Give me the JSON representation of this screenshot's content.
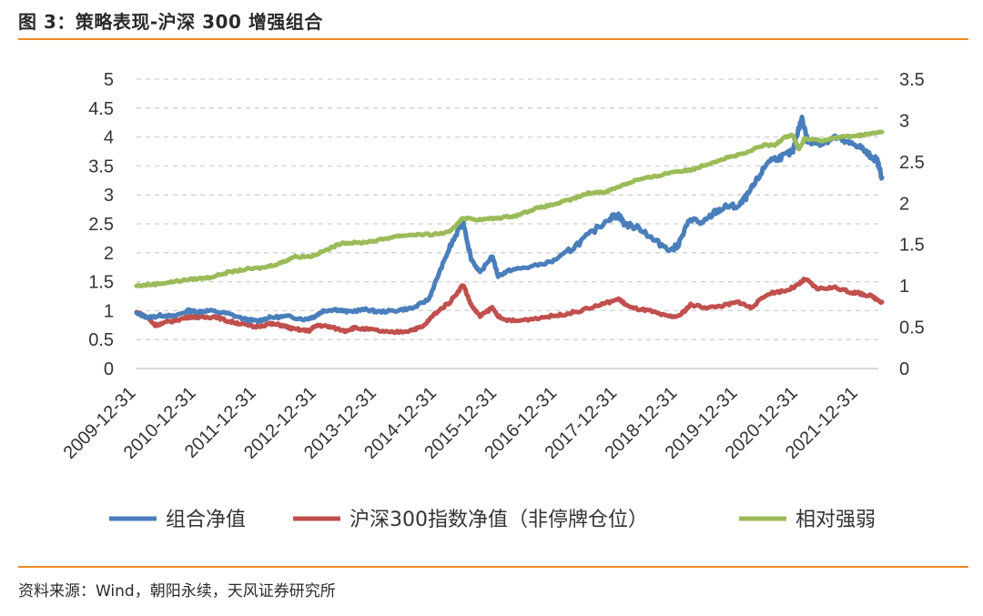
{
  "title": "图 3：策略表现-沪深 300 增强组合",
  "source": "资料来源：Wind，朝阳永续，天风证券研究所",
  "chart_data": {
    "type": "line",
    "x_categories": [
      "2009-12-31",
      "2010-12-31",
      "2011-12-31",
      "2012-12-31",
      "2013-12-31",
      "2014-12-31",
      "2015-12-31",
      "2016-12-31",
      "2017-12-31",
      "2018-12-31",
      "2019-12-31",
      "2020-12-31",
      "2021-12-31"
    ],
    "y_left": {
      "min": 0,
      "max": 5,
      "ticks": [
        "0",
        "0.5",
        "1",
        "1.5",
        "2",
        "2.5",
        "3",
        "3.5",
        "4",
        "4.5",
        "5"
      ]
    },
    "y_right": {
      "min": 0,
      "max": 3.5,
      "ticks": [
        "0",
        "0.5",
        "1",
        "1.5",
        "2",
        "2.5",
        "3",
        "3.5"
      ]
    },
    "grid": true,
    "legend_position": "bottom",
    "series": [
      {
        "name": "组合净值",
        "axis": "left",
        "color": "#4a7ebb",
        "points": [
          [
            2009.99,
            0.95
          ],
          [
            2010.2,
            0.88
          ],
          [
            2010.4,
            0.92
          ],
          [
            2010.6,
            0.9
          ],
          [
            2010.85,
            1.0
          ],
          [
            2011.0,
            0.98
          ],
          [
            2011.2,
            1.0
          ],
          [
            2011.5,
            0.95
          ],
          [
            2011.8,
            0.85
          ],
          [
            2012.0,
            0.82
          ],
          [
            2012.2,
            0.88
          ],
          [
            2012.5,
            0.9
          ],
          [
            2012.8,
            0.85
          ],
          [
            2012.95,
            0.9
          ],
          [
            2013.1,
            1.0
          ],
          [
            2013.3,
            1.02
          ],
          [
            2013.5,
            0.98
          ],
          [
            2013.8,
            1.02
          ],
          [
            2014.0,
            0.98
          ],
          [
            2014.3,
            1.0
          ],
          [
            2014.6,
            1.05
          ],
          [
            2014.85,
            1.2
          ],
          [
            2015.0,
            1.6
          ],
          [
            2015.2,
            2.1
          ],
          [
            2015.42,
            2.55
          ],
          [
            2015.55,
            1.9
          ],
          [
            2015.7,
            1.65
          ],
          [
            2015.9,
            1.95
          ],
          [
            2016.0,
            1.6
          ],
          [
            2016.2,
            1.7
          ],
          [
            2016.5,
            1.75
          ],
          [
            2016.9,
            1.85
          ],
          [
            2017.2,
            2.05
          ],
          [
            2017.5,
            2.3
          ],
          [
            2017.85,
            2.6
          ],
          [
            2018.0,
            2.65
          ],
          [
            2018.1,
            2.5
          ],
          [
            2018.4,
            2.4
          ],
          [
            2018.6,
            2.2
          ],
          [
            2018.9,
            2.05
          ],
          [
            2019.0,
            2.15
          ],
          [
            2019.2,
            2.6
          ],
          [
            2019.4,
            2.5
          ],
          [
            2019.6,
            2.7
          ],
          [
            2019.8,
            2.8
          ],
          [
            2020.0,
            2.8
          ],
          [
            2020.15,
            3.0
          ],
          [
            2020.3,
            3.25
          ],
          [
            2020.5,
            3.6
          ],
          [
            2020.7,
            3.65
          ],
          [
            2020.9,
            3.75
          ],
          [
            2021.05,
            4.35
          ],
          [
            2021.15,
            3.9
          ],
          [
            2021.4,
            3.9
          ],
          [
            2021.6,
            4.0
          ],
          [
            2021.8,
            3.9
          ],
          [
            2022.0,
            3.85
          ],
          [
            2022.15,
            3.7
          ],
          [
            2022.3,
            3.6
          ],
          [
            2022.38,
            3.3
          ]
        ]
      },
      {
        "name": "沪深300指数净值（非停牌仓位）",
        "axis": "left",
        "color": "#c0504d",
        "points": [
          [
            2009.99,
            0.97
          ],
          [
            2010.15,
            0.9
          ],
          [
            2010.3,
            0.75
          ],
          [
            2010.5,
            0.8
          ],
          [
            2010.7,
            0.85
          ],
          [
            2010.9,
            0.9
          ],
          [
            2011.1,
            0.88
          ],
          [
            2011.3,
            0.9
          ],
          [
            2011.5,
            0.82
          ],
          [
            2011.7,
            0.78
          ],
          [
            2011.95,
            0.72
          ],
          [
            2012.2,
            0.77
          ],
          [
            2012.4,
            0.75
          ],
          [
            2012.6,
            0.68
          ],
          [
            2012.85,
            0.65
          ],
          [
            2013.0,
            0.75
          ],
          [
            2013.2,
            0.72
          ],
          [
            2013.45,
            0.65
          ],
          [
            2013.6,
            0.7
          ],
          [
            2013.9,
            0.67
          ],
          [
            2014.2,
            0.62
          ],
          [
            2014.5,
            0.65
          ],
          [
            2014.75,
            0.72
          ],
          [
            2014.95,
            0.95
          ],
          [
            2015.2,
            1.15
          ],
          [
            2015.42,
            1.45
          ],
          [
            2015.55,
            1.1
          ],
          [
            2015.7,
            0.9
          ],
          [
            2015.9,
            1.05
          ],
          [
            2016.05,
            0.85
          ],
          [
            2016.3,
            0.82
          ],
          [
            2016.7,
            0.88
          ],
          [
            2017.0,
            0.92
          ],
          [
            2017.3,
            0.98
          ],
          [
            2017.7,
            1.1
          ],
          [
            2018.0,
            1.2
          ],
          [
            2018.2,
            1.05
          ],
          [
            2018.5,
            1.0
          ],
          [
            2018.8,
            0.9
          ],
          [
            2019.0,
            0.9
          ],
          [
            2019.2,
            1.1
          ],
          [
            2019.5,
            1.05
          ],
          [
            2019.8,
            1.1
          ],
          [
            2020.0,
            1.15
          ],
          [
            2020.2,
            1.05
          ],
          [
            2020.5,
            1.3
          ],
          [
            2020.8,
            1.35
          ],
          [
            2021.0,
            1.45
          ],
          [
            2021.1,
            1.55
          ],
          [
            2021.3,
            1.38
          ],
          [
            2021.6,
            1.4
          ],
          [
            2021.85,
            1.32
          ],
          [
            2022.0,
            1.3
          ],
          [
            2022.2,
            1.25
          ],
          [
            2022.38,
            1.15
          ]
        ]
      },
      {
        "name": "相对强弱",
        "axis": "right",
        "color": "#9bbb59",
        "points": [
          [
            2009.99,
            1.0
          ],
          [
            2010.3,
            1.02
          ],
          [
            2010.6,
            1.05
          ],
          [
            2010.9,
            1.08
          ],
          [
            2011.2,
            1.1
          ],
          [
            2011.5,
            1.16
          ],
          [
            2011.8,
            1.2
          ],
          [
            2012.1,
            1.22
          ],
          [
            2012.4,
            1.28
          ],
          [
            2012.6,
            1.35
          ],
          [
            2012.9,
            1.36
          ],
          [
            2013.2,
            1.45
          ],
          [
            2013.4,
            1.52
          ],
          [
            2013.7,
            1.52
          ],
          [
            2014.0,
            1.55
          ],
          [
            2014.3,
            1.6
          ],
          [
            2014.6,
            1.62
          ],
          [
            2014.9,
            1.62
          ],
          [
            2015.2,
            1.65
          ],
          [
            2015.4,
            1.82
          ],
          [
            2015.7,
            1.8
          ],
          [
            2016.0,
            1.82
          ],
          [
            2016.3,
            1.85
          ],
          [
            2016.6,
            1.93
          ],
          [
            2016.9,
            1.98
          ],
          [
            2017.2,
            2.04
          ],
          [
            2017.5,
            2.12
          ],
          [
            2017.8,
            2.14
          ],
          [
            2018.0,
            2.2
          ],
          [
            2018.3,
            2.28
          ],
          [
            2018.6,
            2.32
          ],
          [
            2018.9,
            2.38
          ],
          [
            2019.2,
            2.4
          ],
          [
            2019.5,
            2.48
          ],
          [
            2019.8,
            2.55
          ],
          [
            2020.1,
            2.6
          ],
          [
            2020.4,
            2.7
          ],
          [
            2020.6,
            2.7
          ],
          [
            2020.75,
            2.8
          ],
          [
            2020.9,
            2.82
          ],
          [
            2021.0,
            2.65
          ],
          [
            2021.1,
            2.78
          ],
          [
            2021.4,
            2.76
          ],
          [
            2021.7,
            2.8
          ],
          [
            2022.0,
            2.82
          ],
          [
            2022.2,
            2.84
          ],
          [
            2022.38,
            2.86
          ]
        ]
      }
    ]
  }
}
